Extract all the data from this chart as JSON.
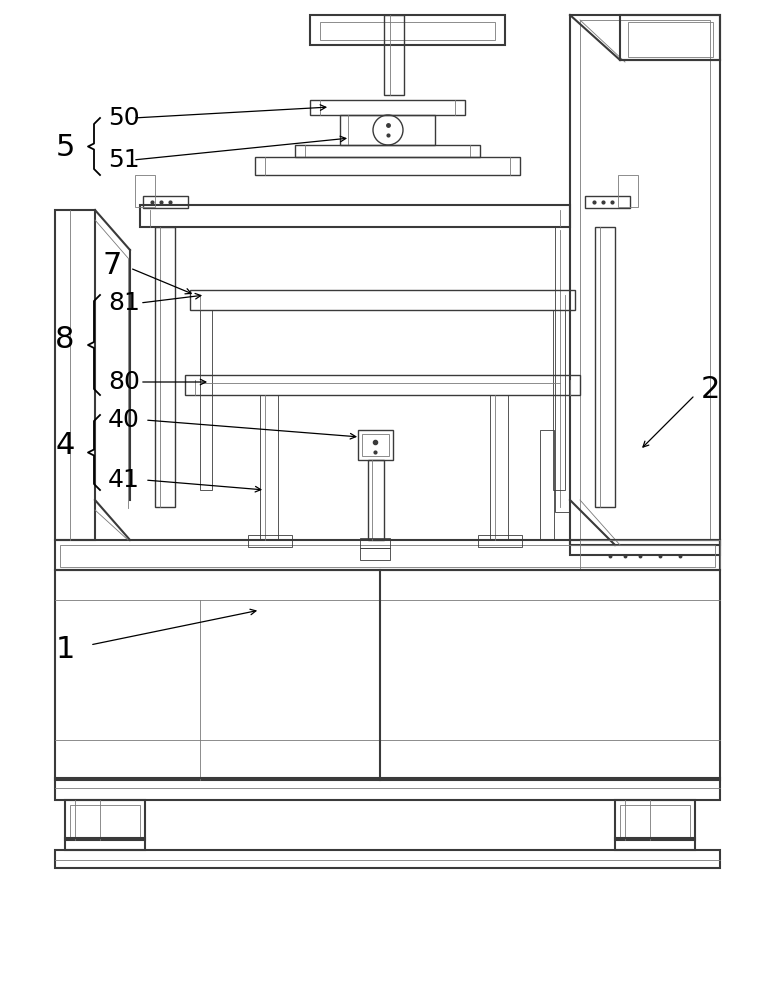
{
  "bg_color": "#ffffff",
  "lc": "#3a3a3a",
  "lc2": "#7a7a7a",
  "lw_main": 1.5,
  "lw_med": 1.0,
  "lw_thin": 0.6,
  "figw": 7.59,
  "figh": 10.0,
  "dpi": 100
}
